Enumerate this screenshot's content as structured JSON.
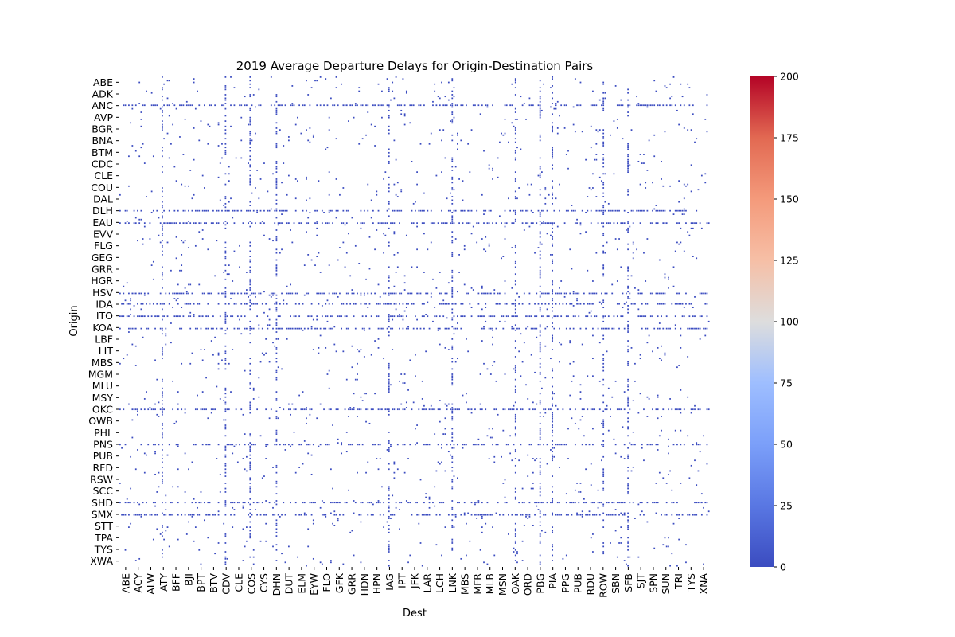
{
  "chart_data": {
    "type": "heatmap",
    "title": "2019 Average Departure Delays for Origin-Destination Pairs",
    "xlabel": "Dest",
    "ylabel": "Origin",
    "x_tick_labels": [
      "ABE",
      "ACY",
      "ALW",
      "ATY",
      "BFF",
      "BJI",
      "BPT",
      "BTV",
      "CDV",
      "CLE",
      "COS",
      "CYS",
      "DHN",
      "DUT",
      "ELM",
      "EYW",
      "FLO",
      "GFK",
      "GRR",
      "HDN",
      "HPN",
      "IAG",
      "IPT",
      "JFK",
      "LAR",
      "LCH",
      "LNK",
      "MBS",
      "MFR",
      "MLB",
      "MSN",
      "OAK",
      "ORD",
      "PBG",
      "PIA",
      "PPG",
      "PUB",
      "RDU",
      "ROW",
      "SBN",
      "SFB",
      "SJT",
      "SPN",
      "SUN",
      "TRI",
      "TYS",
      "XNA"
    ],
    "y_tick_labels": [
      "ABE",
      "ADK",
      "ANC",
      "AVP",
      "BGR",
      "BNA",
      "BTM",
      "CDC",
      "CLE",
      "COU",
      "DAL",
      "DLH",
      "EAU",
      "EVV",
      "FLG",
      "GEG",
      "GRR",
      "HGR",
      "HSV",
      "IDA",
      "ITO",
      "KOA",
      "LBF",
      "LIT",
      "MBS",
      "MGM",
      "MLU",
      "MSY",
      "OKC",
      "OWB",
      "PHL",
      "PNS",
      "PUB",
      "RFD",
      "RSW",
      "SCC",
      "SHD",
      "SMX",
      "STT",
      "TPA",
      "TYS",
      "XWA"
    ],
    "colorbar": {
      "min": 0,
      "max": 200,
      "ticks": [
        0,
        25,
        50,
        75,
        100,
        125,
        150,
        175,
        200
      ],
      "colormap": "coolwarm",
      "low_color": "#3b4cc0",
      "mid_color": "#dddddd",
      "high_color": "#b40426"
    },
    "cell_color": "#3b4cc0",
    "dense_rows": [
      2,
      11,
      12,
      18,
      19,
      20,
      21,
      28,
      31,
      36,
      37
    ],
    "dense_cols": [
      3,
      8,
      10,
      12,
      21,
      26,
      31,
      33,
      34,
      38,
      40
    ]
  }
}
